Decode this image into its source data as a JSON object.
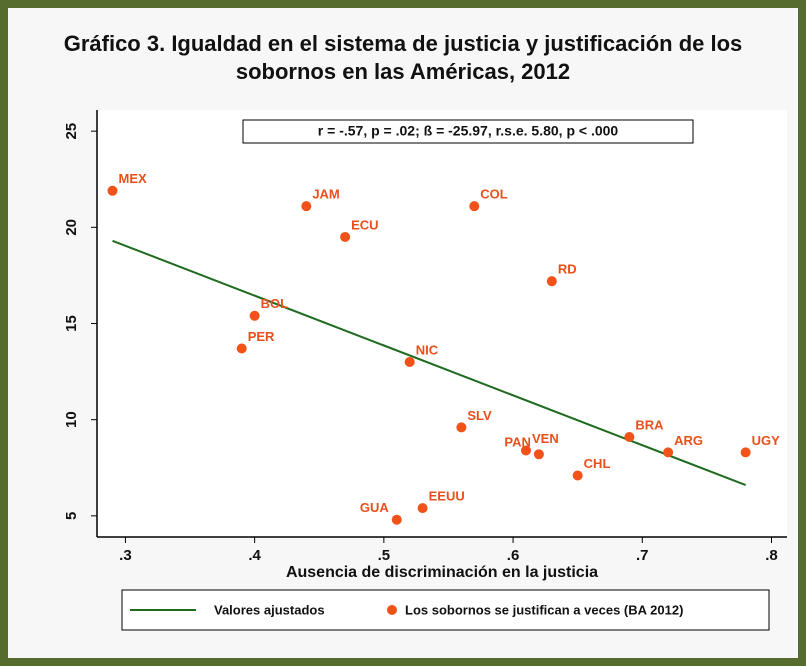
{
  "chart_data": {
    "type": "scatter",
    "title": "Gráfico 3. Igualdad en el sistema de justicia y justificación de los sobornos en las Américas, 2012",
    "annotation": "r = -.57, p = .02; ß = -25.97, r.s.e. 5.80, p < .000",
    "x_label": "Ausencia de discriminación en la justicia",
    "xlim": [
      0.278,
      0.812
    ],
    "xticks": [
      {
        "value": 0.3,
        "label": ".3"
      },
      {
        "value": 0.4,
        "label": ".4"
      },
      {
        "value": 0.5,
        "label": ".5"
      },
      {
        "value": 0.6,
        "label": ".6"
      },
      {
        "value": 0.7,
        "label": ".7"
      },
      {
        "value": 0.8,
        "label": ".8"
      }
    ],
    "ylim": [
      3.9,
      26.1
    ],
    "yticks": [
      5,
      10,
      15,
      20,
      25
    ],
    "series": [
      {
        "name": "Valores ajustados",
        "type": "line",
        "color": "#1f6b1f",
        "x": [
          0.29,
          0.78
        ],
        "values": [
          19.3,
          6.6
        ]
      },
      {
        "name": "Los sobornos se justifican a veces (BA 2012)",
        "type": "scatter",
        "color": "#f0521a",
        "labels": [
          "MEX",
          "JAM",
          "ECU",
          "COL",
          "RD",
          "BOL",
          "PER",
          "NIC",
          "SLV",
          "VEN",
          "PAN",
          "CHL",
          "BRA",
          "ARG",
          "UGY",
          "EEUU",
          "GUA"
        ],
        "x": [
          0.29,
          0.44,
          0.47,
          0.57,
          0.63,
          0.4,
          0.39,
          0.52,
          0.56,
          0.61,
          0.62,
          0.65,
          0.69,
          0.72,
          0.78,
          0.53,
          0.51
        ],
        "values": [
          21.9,
          21.1,
          19.5,
          21.1,
          17.2,
          15.4,
          13.7,
          13.0,
          9.6,
          8.4,
          8.2,
          7.1,
          9.1,
          8.3,
          8.3,
          5.4,
          4.8
        ]
      }
    ]
  }
}
